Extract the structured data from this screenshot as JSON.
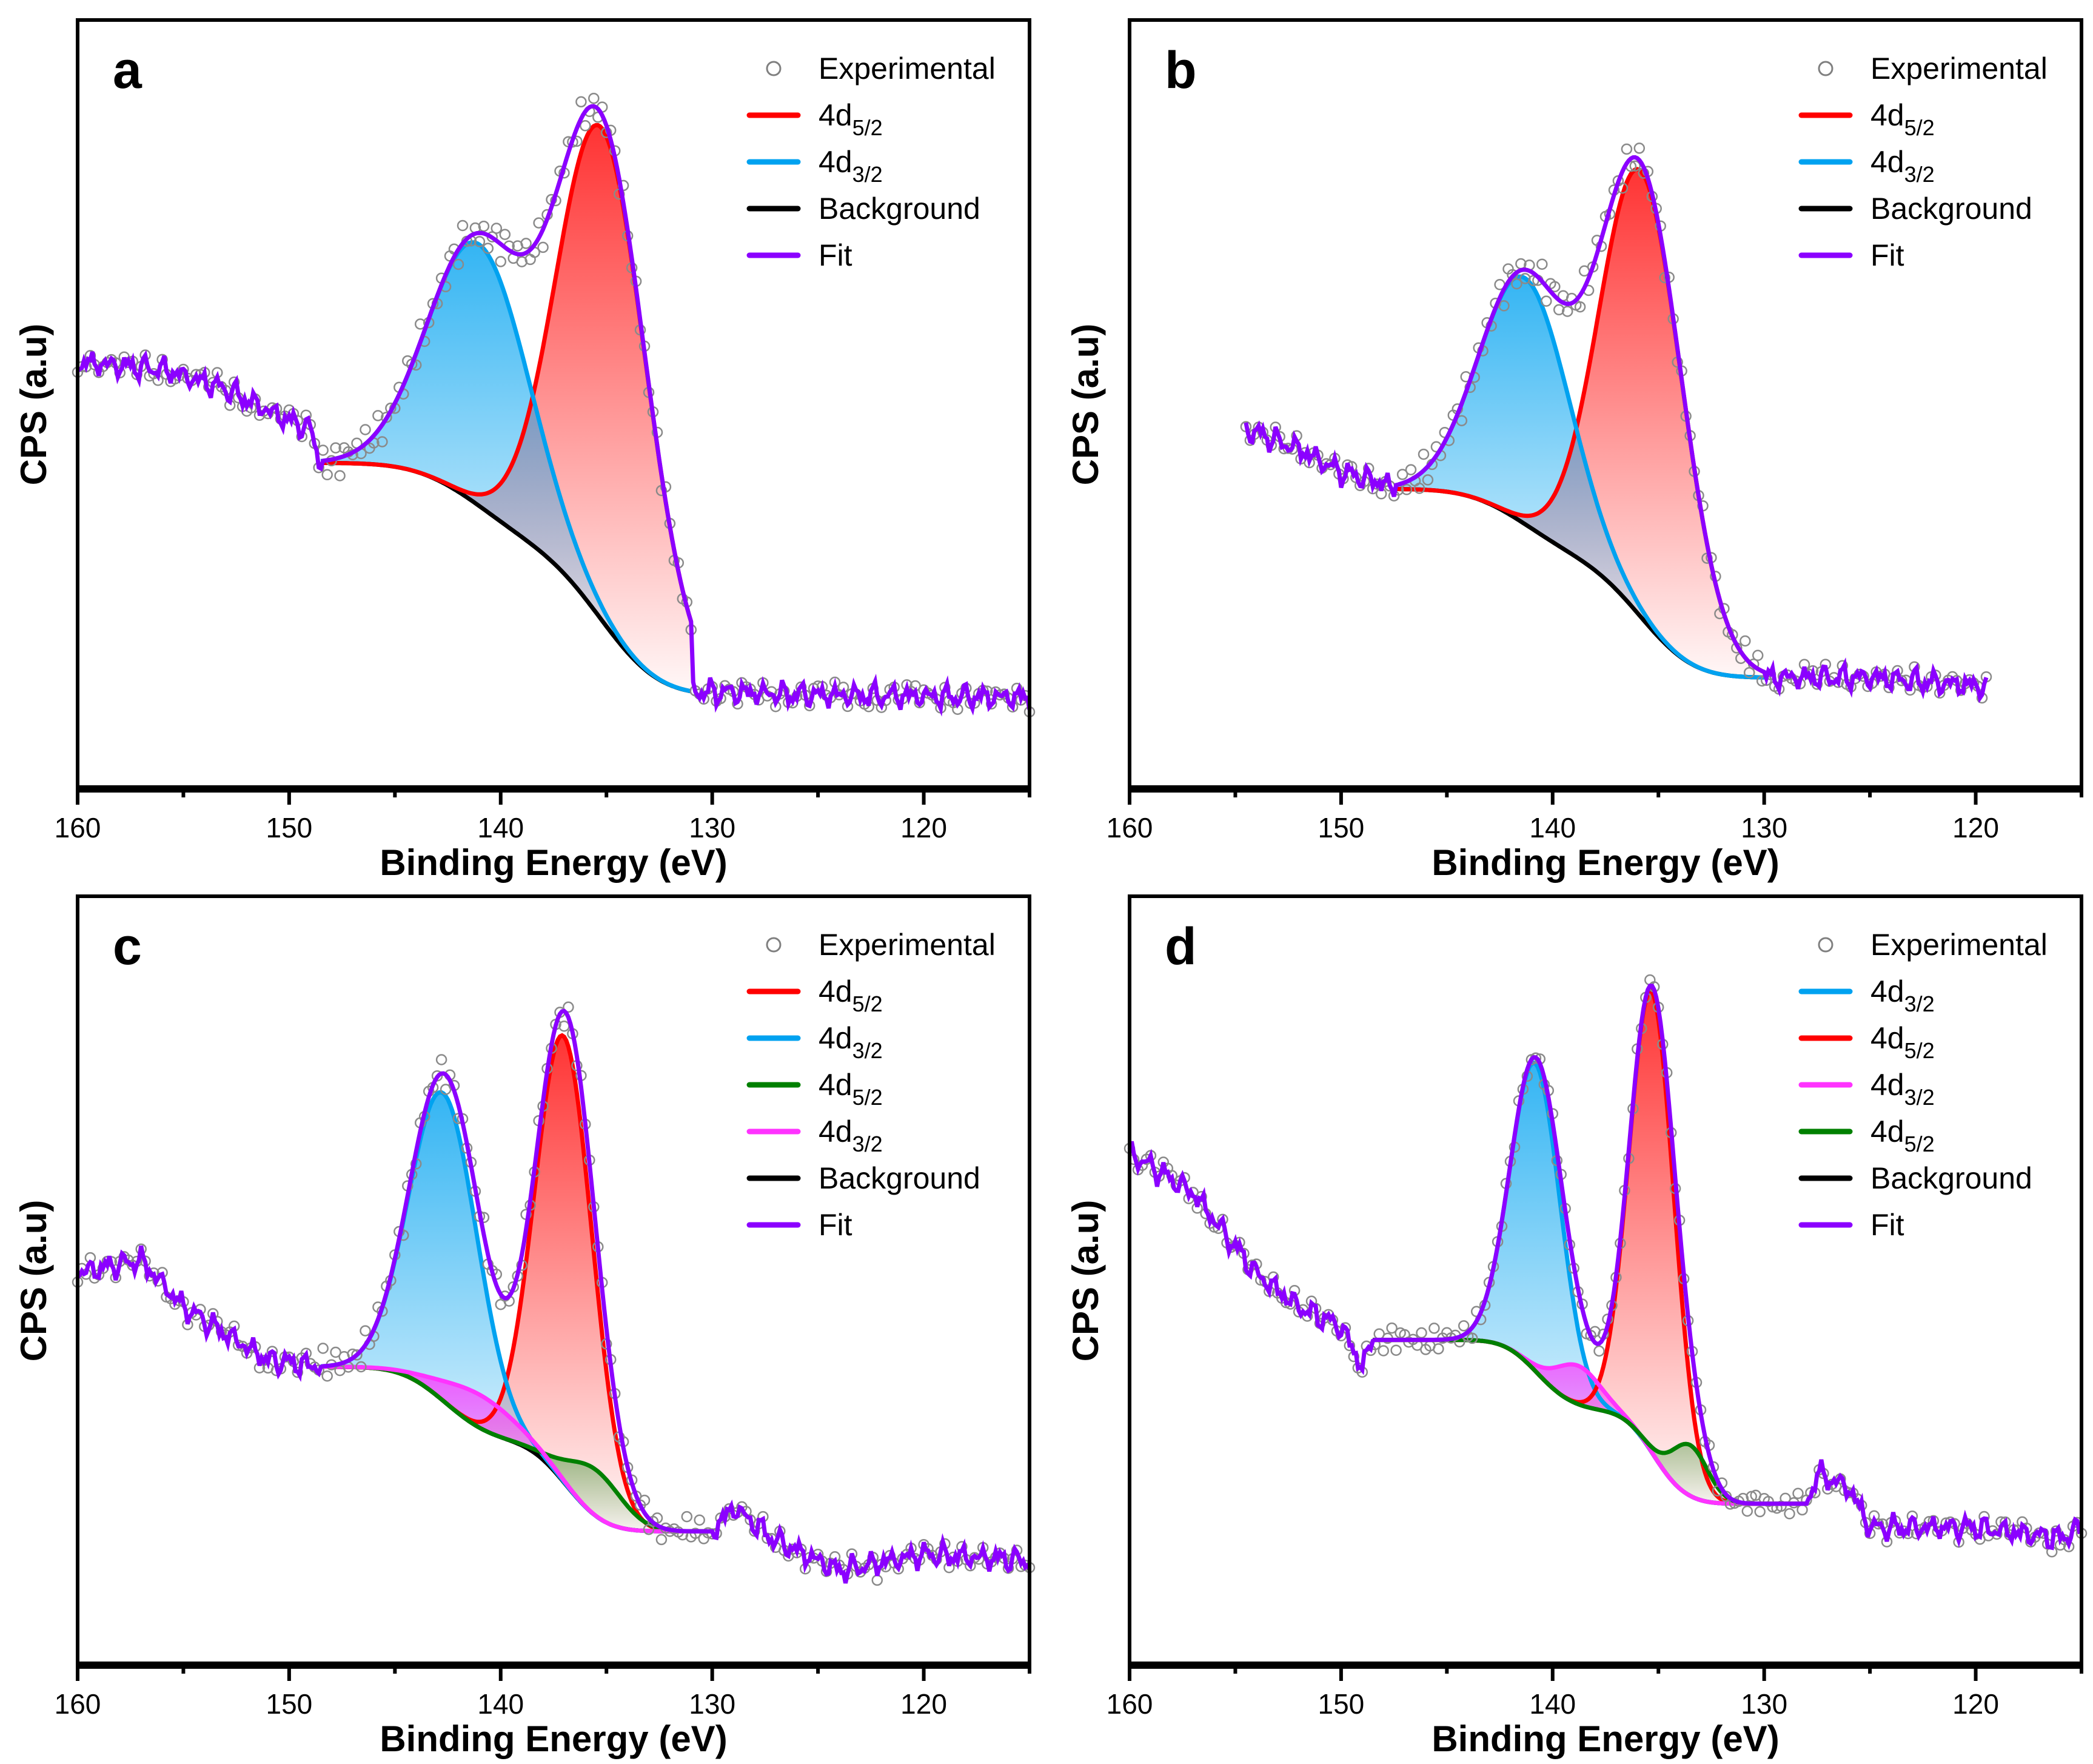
{
  "chart_data": [
    {
      "panel": "a",
      "type": "line",
      "xlabel": "Binding Energy (eV)",
      "ylabel": "CPS (a.u)",
      "xlim": [
        160,
        115
      ],
      "ylim": [
        0,
        100
      ],
      "xticks": [
        "160",
        "150",
        "140",
        "130",
        "120"
      ],
      "legend_placement": "top-right",
      "legend": [
        {
          "label": "Experimental",
          "sub": "",
          "kind": "marker",
          "color": "#808080"
        },
        {
          "label": "4d",
          "sub": "5/2",
          "kind": "line",
          "color": "#ff0000"
        },
        {
          "label": "4d",
          "sub": "3/2",
          "kind": "line",
          "color": "#00a2f0"
        },
        {
          "label": "Background",
          "sub": "",
          "kind": "line",
          "color": "#000000"
        },
        {
          "label": "Fit",
          "sub": "",
          "kind": "line",
          "color": "#8b00ff"
        }
      ],
      "data_range": [
        160,
        115
      ],
      "fit_range": [
        148.5,
        131
      ],
      "background": {
        "high": 42.4,
        "low": 12.7
      },
      "peaks": [
        {
          "name": "4d5/2",
          "center": 135.2,
          "fwhm": 5.0,
          "amplitude": 64,
          "color": "#ff0000"
        },
        {
          "name": "4d3/2",
          "center": 141.0,
          "fwhm": 5.6,
          "amplitude": 34,
          "color": "#00a2f0"
        }
      ],
      "left_region": [
        [
          160,
          55.5
        ],
        [
          156,
          54.6
        ],
        [
          153,
          52.0
        ],
        [
          150.5,
          48.5
        ],
        [
          149,
          46.8
        ],
        [
          148.5,
          42.4
        ]
      ],
      "right_region": [
        [
          131,
          12.7
        ],
        [
          125,
          12.2
        ],
        [
          115,
          11.9
        ]
      ]
    },
    {
      "panel": "b",
      "type": "line",
      "xlabel": "Binding Energy (eV)",
      "ylabel": "CPS (a.u)",
      "xlim": [
        160,
        115
      ],
      "ylim": [
        0,
        100
      ],
      "xticks": [
        "160",
        "150",
        "140",
        "130",
        "120"
      ],
      "legend_placement": "top-right",
      "legend": [
        {
          "label": "Experimental",
          "sub": "",
          "kind": "marker",
          "color": "#808080"
        },
        {
          "label": "4d",
          "sub": "5/2",
          "kind": "line",
          "color": "#ff0000"
        },
        {
          "label": "4d",
          "sub": "3/2",
          "kind": "line",
          "color": "#00a2f0"
        },
        {
          "label": "Background",
          "sub": "",
          "kind": "line",
          "color": "#000000"
        },
        {
          "label": "Fit",
          "sub": "",
          "kind": "line",
          "color": "#8b00ff"
        }
      ],
      "data_range": [
        154.5,
        119.5
      ],
      "fit_range": [
        147.5,
        130
      ],
      "background": {
        "high": 39.0,
        "low": 14.5
      },
      "peaks": [
        {
          "name": "4d5/2",
          "center": 135.8,
          "fwhm": 4.6,
          "amplitude": 58,
          "color": "#ff0000"
        },
        {
          "name": "4d3/2",
          "center": 141.3,
          "fwhm": 5.0,
          "amplitude": 32,
          "color": "#00a2f0"
        }
      ],
      "left_region": [
        [
          154.5,
          46.8
        ],
        [
          152,
          44.2
        ],
        [
          150,
          41.2
        ],
        [
          148,
          39.8
        ],
        [
          147.5,
          39.0
        ]
      ],
      "right_region": [
        [
          130,
          14.5
        ],
        [
          125,
          14.5
        ],
        [
          119.5,
          13.3
        ]
      ]
    },
    {
      "panel": "c",
      "type": "line",
      "xlabel": "Binding Energy (eV)",
      "ylabel": "CPS (a.u)",
      "xlim": [
        160,
        115
      ],
      "ylim": [
        0,
        100
      ],
      "xticks": [
        "160",
        "150",
        "140",
        "130",
        "120"
      ],
      "legend_placement": "top-right",
      "legend": [
        {
          "label": "Experimental",
          "sub": "",
          "kind": "marker",
          "color": "#808080"
        },
        {
          "label": "4d",
          "sub": "5/2",
          "kind": "line",
          "color": "#ff0000"
        },
        {
          "label": "4d",
          "sub": "3/2",
          "kind": "line",
          "color": "#00a2f0"
        },
        {
          "label": "4d",
          "sub": "5/2",
          "kind": "line",
          "color": "#008000"
        },
        {
          "label": "4d",
          "sub": "3/2",
          "kind": "line",
          "color": "#ff33ff"
        },
        {
          "label": "Background",
          "sub": "",
          "kind": "line",
          "color": "#000000"
        },
        {
          "label": "Fit",
          "sub": "",
          "kind": "line",
          "color": "#8b00ff"
        }
      ],
      "data_range": [
        160,
        115
      ],
      "fit_range": [
        148.5,
        130
      ],
      "background": {
        "high": 38.8,
        "low": 17.4
      },
      "peaks": [
        {
          "name": "4d5/2",
          "center": 137.0,
          "fwhm": 3.2,
          "amplitude": 58,
          "color": "#ff0000"
        },
        {
          "name": "4d3/2",
          "center": 142.7,
          "fwhm": 3.8,
          "amplitude": 40,
          "color": "#00a2f0"
        },
        {
          "name": "4d5/2",
          "center": 135.5,
          "fwhm": 3.0,
          "amplitude": 6,
          "color": "#008000"
        },
        {
          "name": "4d3/2",
          "center": 141.0,
          "fwhm": 4.0,
          "amplitude": 4.3,
          "color": "#ff33ff"
        }
      ],
      "left_region": [
        [
          160,
          51.0
        ],
        [
          157,
          52.7
        ],
        [
          155,
          46.6
        ],
        [
          153,
          43.1
        ],
        [
          151,
          39.7
        ],
        [
          148.5,
          38.8
        ]
      ],
      "right_region": [
        [
          130,
          17.4
        ],
        [
          129,
          20.5
        ],
        [
          127,
          16.2
        ],
        [
          124,
          12.3
        ],
        [
          120,
          14.4
        ],
        [
          115,
          13.6
        ]
      ]
    },
    {
      "panel": "d",
      "type": "line",
      "xlabel": "Binding Energy (eV)",
      "ylabel": "CPS (a.u)",
      "xlim": [
        160,
        115
      ],
      "ylim": [
        0,
        100
      ],
      "xticks": [
        "160",
        "150",
        "140",
        "130",
        "120"
      ],
      "legend_placement": "top-right",
      "legend": [
        {
          "label": "Experimental",
          "sub": "",
          "kind": "marker",
          "color": "#808080"
        },
        {
          "label": "4d",
          "sub": "3/2",
          "kind": "line",
          "color": "#00a2f0"
        },
        {
          "label": "4d",
          "sub": "5/2",
          "kind": "line",
          "color": "#ff0000"
        },
        {
          "label": "4d",
          "sub": "3/2",
          "kind": "line",
          "color": "#ff33ff"
        },
        {
          "label": "4d",
          "sub": "5/2",
          "kind": "line",
          "color": "#008000"
        },
        {
          "label": "Background",
          "sub": "",
          "kind": "line",
          "color": "#000000"
        },
        {
          "label": "Fit",
          "sub": "",
          "kind": "line",
          "color": "#8b00ff"
        }
      ],
      "data_range": [
        160,
        115
      ],
      "fit_range": [
        148.5,
        128
      ],
      "background": {
        "high": 42.3,
        "low": 21.0
      },
      "peaks": [
        {
          "name": "4d3/2",
          "center": 140.8,
          "fwhm": 2.8,
          "amplitude": 40,
          "color": "#00a2f0"
        },
        {
          "name": "4d5/2",
          "center": 135.3,
          "fwhm": 2.5,
          "amplitude": 60,
          "color": "#ff0000"
        },
        {
          "name": "4d3/2",
          "center": 138.8,
          "fwhm": 2.5,
          "amplitude": 5,
          "color": "#ff33ff"
        },
        {
          "name": "4d5/2",
          "center": 133.5,
          "fwhm": 2.0,
          "amplitude": 6.6,
          "color": "#008000"
        }
      ],
      "left_region": [
        [
          160,
          66.6
        ],
        [
          157,
          61.4
        ],
        [
          154,
          50.9
        ],
        [
          152,
          46.6
        ],
        [
          150,
          44.0
        ],
        [
          149,
          38.8
        ],
        [
          148.5,
          42.3
        ]
      ],
      "right_region": [
        [
          128,
          21.0
        ],
        [
          127.5,
          24.9
        ],
        [
          126,
          23.1
        ],
        [
          125,
          17.9
        ],
        [
          120,
          17.9
        ],
        [
          116,
          16.5
        ],
        [
          115,
          17.9
        ]
      ]
    }
  ]
}
